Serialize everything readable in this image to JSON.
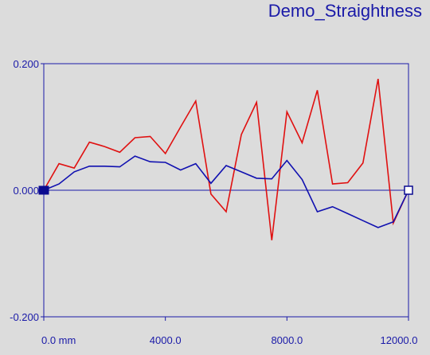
{
  "chart_data": {
    "type": "line",
    "title": "Demo_Straightness",
    "xlabel": "",
    "ylabel": "",
    "xlim": [
      0,
      12000
    ],
    "ylim": [
      -0.2,
      0.2
    ],
    "x_ticks": [
      {
        "value": 0,
        "label": "0.0 mm"
      },
      {
        "value": 4000,
        "label": "4000.0"
      },
      {
        "value": 8000,
        "label": "8000.0"
      },
      {
        "value": 12000,
        "label": "12000.0"
      }
    ],
    "y_ticks": [
      {
        "value": 0.2,
        "label": "0.200"
      },
      {
        "value": 0.0,
        "label": "0.000"
      },
      {
        "value": -0.2,
        "label": "-0.200"
      }
    ],
    "grid": false,
    "series": [
      {
        "color": "#e01010",
        "x": [
          0,
          500,
          1000,
          1500,
          2000,
          2500,
          3000,
          3500,
          4000,
          4500,
          5000,
          5500,
          6000,
          6500,
          7000,
          7500,
          8000,
          8500,
          9000,
          9500,
          10000,
          10500,
          11000,
          11500,
          12000
        ],
        "y": [
          0.0,
          0.042,
          0.035,
          0.076,
          0.069,
          0.06,
          0.083,
          0.085,
          0.058,
          0.1,
          0.141,
          -0.006,
          -0.034,
          0.088,
          0.139,
          -0.079,
          0.124,
          0.075,
          0.158,
          0.01,
          0.012,
          0.043,
          0.176,
          -0.052,
          0.0
        ]
      },
      {
        "color": "#1010b0",
        "x": [
          0,
          500,
          1000,
          1500,
          2000,
          2500,
          3000,
          3500,
          4000,
          4500,
          5000,
          5500,
          6000,
          6500,
          7000,
          7500,
          8000,
          8500,
          9000,
          9500,
          10000,
          10500,
          11000,
          11500,
          12000
        ],
        "y": [
          0.0,
          0.01,
          0.029,
          0.038,
          0.038,
          0.037,
          0.054,
          0.045,
          0.044,
          0.032,
          0.042,
          0.011,
          0.039,
          0.029,
          0.019,
          0.018,
          0.047,
          0.017,
          -0.034,
          -0.026,
          -0.037,
          -0.048,
          -0.059,
          -0.05,
          0.0
        ]
      }
    ],
    "colors": {
      "background": "#dcdcdc",
      "axis": "#1a1aa8"
    }
  }
}
